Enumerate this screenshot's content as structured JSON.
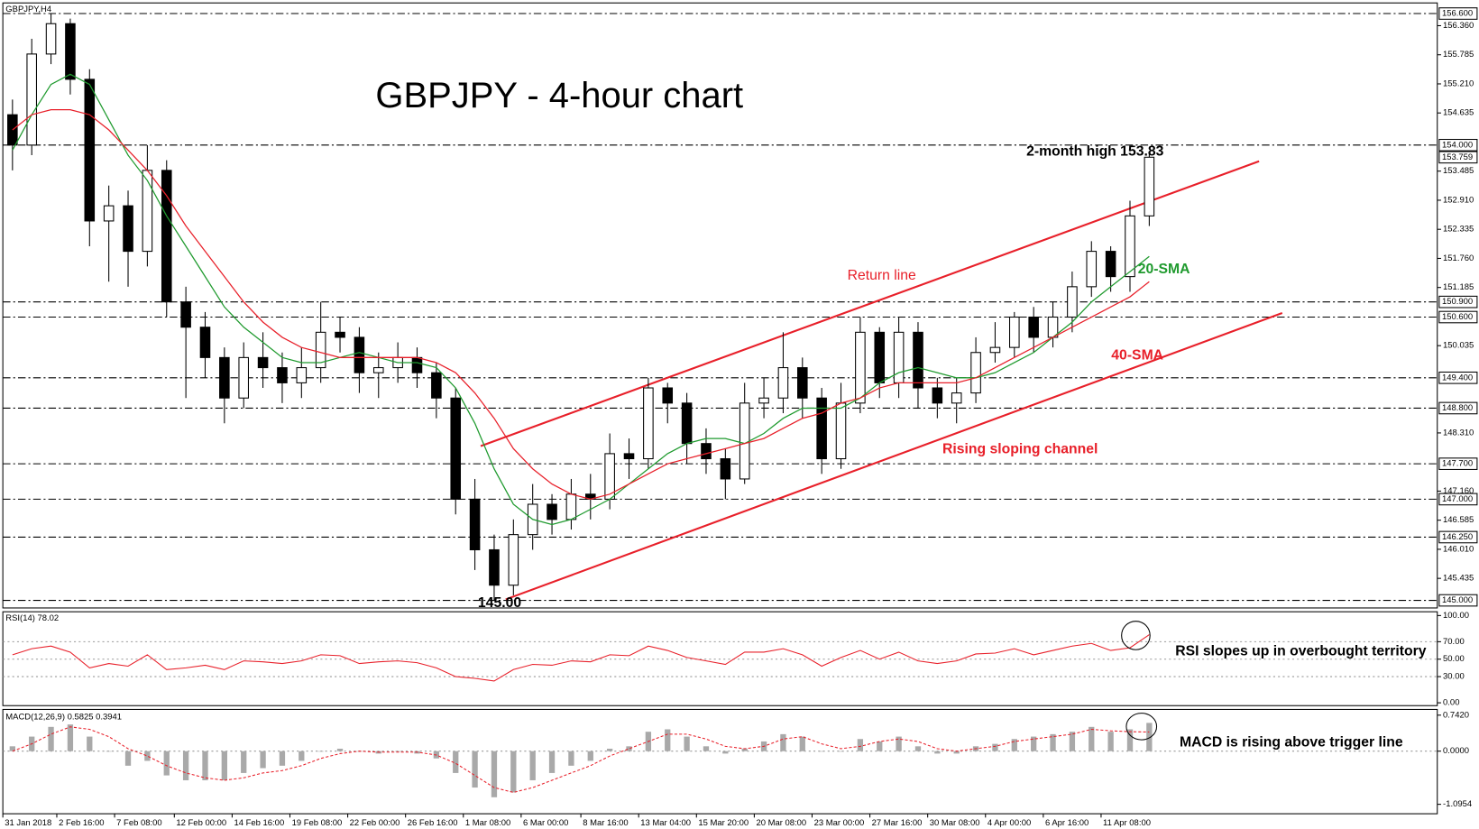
{
  "chart_data": [
    {
      "type": "candlestick",
      "title": "GBPJPY - 4-hour chart",
      "symbol_label": "GBPJPY,H4",
      "high_label": "2-month high 153.83",
      "low_label": "145.00",
      "open": [
        154.6,
        154.0,
        155.8,
        156.4,
        155.3,
        152.5,
        152.8,
        151.9,
        153.5,
        150.9,
        150.4,
        149.8,
        149.0,
        149.8,
        149.6,
        149.3,
        149.6,
        150.3,
        150.2,
        149.5,
        149.6,
        149.8,
        149.5,
        149.0,
        147.0,
        146.0,
        145.3,
        146.3,
        146.9,
        146.6,
        147.1,
        147.0,
        147.9,
        147.8,
        149.2,
        148.9,
        148.1,
        147.8,
        147.4,
        148.9,
        149.0,
        149.6,
        149.0,
        147.8,
        148.9,
        150.3,
        149.3,
        150.3,
        149.2,
        148.9,
        149.1,
        149.9,
        150.0,
        150.6,
        150.2,
        150.6,
        151.2,
        151.9,
        151.4,
        152.6
      ],
      "high": [
        154.9,
        156.1,
        156.6,
        156.5,
        155.5,
        153.2,
        153.1,
        154.0,
        153.7,
        151.2,
        150.7,
        150.0,
        150.1,
        150.3,
        149.9,
        150.0,
        150.9,
        150.6,
        150.4,
        149.9,
        150.1,
        150.0,
        149.7,
        149.2,
        147.4,
        146.3,
        146.6,
        147.3,
        147.1,
        147.4,
        147.5,
        148.3,
        148.2,
        149.4,
        149.3,
        149.1,
        148.4,
        148.0,
        149.3,
        149.4,
        150.3,
        149.8,
        149.2,
        149.3,
        150.6,
        150.4,
        150.6,
        150.5,
        149.4,
        149.4,
        150.2,
        150.5,
        150.7,
        150.8,
        150.9,
        151.5,
        152.1,
        152.0,
        152.9,
        153.83
      ],
      "low": [
        153.5,
        153.8,
        155.6,
        155.0,
        152.0,
        151.3,
        151.2,
        151.6,
        150.6,
        149.0,
        149.4,
        148.5,
        148.8,
        149.2,
        148.9,
        149.0,
        149.3,
        149.9,
        149.1,
        149.0,
        149.3,
        149.2,
        148.6,
        146.7,
        145.6,
        145.0,
        145.1,
        146.0,
        146.3,
        146.4,
        146.6,
        146.8,
        147.4,
        147.6,
        148.5,
        147.7,
        147.5,
        147.0,
        147.3,
        148.6,
        148.7,
        148.6,
        147.5,
        147.6,
        148.7,
        149.0,
        149.0,
        148.8,
        148.6,
        148.5,
        148.9,
        149.7,
        149.8,
        149.9,
        150.0,
        150.3,
        151.0,
        151.1,
        151.1,
        152.4
      ],
      "close": [
        154.0,
        155.8,
        156.4,
        155.3,
        152.5,
        152.8,
        151.9,
        153.5,
        150.9,
        150.4,
        149.8,
        149.0,
        149.8,
        149.6,
        149.3,
        149.6,
        150.3,
        150.2,
        149.5,
        149.6,
        149.8,
        149.5,
        149.0,
        147.0,
        146.0,
        145.3,
        146.3,
        146.9,
        146.6,
        147.1,
        147.0,
        147.9,
        147.8,
        149.2,
        148.9,
        148.1,
        147.8,
        147.4,
        148.9,
        149.0,
        149.6,
        149.0,
        147.8,
        148.9,
        150.3,
        149.3,
        150.3,
        149.2,
        148.9,
        149.1,
        149.9,
        150.0,
        150.6,
        150.2,
        150.6,
        151.2,
        151.9,
        151.4,
        152.6,
        153.76
      ],
      "series": [
        {
          "name": "20-SMA",
          "color": "#1f9a2e",
          "values": [
            153.9,
            154.6,
            155.2,
            155.4,
            155.2,
            154.5,
            153.8,
            153.3,
            152.6,
            152.0,
            151.4,
            150.8,
            150.4,
            150.1,
            149.8,
            149.7,
            149.7,
            149.8,
            149.9,
            149.8,
            149.7,
            149.7,
            149.6,
            149.2,
            148.5,
            147.6,
            146.9,
            146.6,
            146.5,
            146.6,
            146.8,
            147.0,
            147.3,
            147.6,
            147.9,
            148.1,
            148.2,
            148.2,
            148.1,
            148.3,
            148.6,
            148.8,
            148.8,
            148.8,
            149.0,
            149.3,
            149.5,
            149.6,
            149.5,
            149.4,
            149.4,
            149.5,
            149.7,
            149.9,
            150.2,
            150.5,
            150.9,
            151.2,
            151.5,
            151.8
          ]
        },
        {
          "name": "40-SMA",
          "color": "#e8202a",
          "values": [
            154.3,
            154.6,
            154.7,
            154.7,
            154.6,
            154.3,
            153.9,
            153.5,
            153.0,
            152.4,
            151.9,
            151.4,
            150.9,
            150.5,
            150.2,
            150.0,
            149.9,
            149.8,
            149.8,
            149.8,
            149.8,
            149.8,
            149.7,
            149.5,
            149.1,
            148.6,
            148.0,
            147.6,
            147.3,
            147.1,
            147.0,
            147.1,
            147.3,
            147.5,
            147.7,
            147.8,
            147.9,
            148.0,
            148.1,
            148.2,
            148.4,
            148.6,
            148.7,
            148.9,
            149.0,
            149.2,
            149.3,
            149.3,
            149.3,
            149.3,
            149.4,
            149.6,
            149.8,
            150.0,
            150.2,
            150.4,
            150.6,
            150.8,
            151.0,
            151.3
          ]
        }
      ],
      "channel": {
        "name": "Rising sloping channel",
        "color": "#e8202a",
        "lines": [
          {
            "name": "Return line",
            "x": [
              24.3,
              64.7
            ],
            "y": [
              148.05,
              153.68
            ]
          },
          {
            "x": [
              25.6,
              65.9
            ],
            "y": [
              145.02,
              150.68
            ]
          }
        ]
      },
      "levels": [
        {
          "value": 156.6,
          "label": "156.600"
        },
        {
          "value": 154,
          "label": "154.000"
        },
        {
          "value": 150.9,
          "label": "150.900"
        },
        {
          "value": 150.6,
          "label": "150.600"
        },
        {
          "value": 149.4,
          "label": "149.400"
        },
        {
          "value": 148.8,
          "label": "148.800"
        },
        {
          "value": 147.7,
          "label": "147.700"
        },
        {
          "value": 147,
          "label": "147.000"
        },
        {
          "value": 146.25,
          "label": "146.250"
        },
        {
          "value": 145,
          "label": "145.000"
        }
      ],
      "last_price": 153.759,
      "xlim": [
        -0.5,
        73.9
      ],
      "xticks": [
        {
          "value": -0.5,
          "label": "31 Jan 2018"
        },
        {
          "value": 2.3,
          "label": "2 Feb 16:00"
        },
        {
          "value": 5.3,
          "label": "7 Feb 08:00"
        },
        {
          "value": 8.4,
          "label": "12 Feb 00:00"
        },
        {
          "value": 11.4,
          "label": "14 Feb 16:00"
        },
        {
          "value": 14.4,
          "label": "19 Feb 08:00"
        },
        {
          "value": 17.4,
          "label": "22 Feb 00:00"
        },
        {
          "value": 20.4,
          "label": "26 Feb 16:00"
        },
        {
          "value": 23.4,
          "label": "1 Mar 08:00"
        },
        {
          "value": 26.4,
          "label": "6 Mar 00:00"
        },
        {
          "value": 29.5,
          "label": "8 Mar 16:00"
        },
        {
          "value": 32.5,
          "label": "13 Mar 04:00"
        },
        {
          "value": 35.5,
          "label": "15 Mar 20:00"
        },
        {
          "value": 38.5,
          "label": "20 Mar 08:00"
        },
        {
          "value": 41.5,
          "label": "23 Mar 00:00"
        },
        {
          "value": 44.5,
          "label": "27 Mar 16:00"
        },
        {
          "value": 47.5,
          "label": "30 Mar 08:00"
        },
        {
          "value": 50.5,
          "label": "4 Apr 00:00"
        },
        {
          "value": 53.5,
          "label": "6 Apr 16:00"
        },
        {
          "value": 56.5,
          "label": "11 Apr 08:00"
        }
      ],
      "ylim": [
        144.85,
        156.81
      ],
      "yticks": [
        {
          "value": 156.36,
          "label": "156.360"
        },
        155.785,
        {
          "value": 155.21,
          "label": "155.210"
        },
        154.635,
        153.485,
        {
          "value": 152.91,
          "label": "152.910"
        },
        152.335,
        {
          "value": 151.76,
          "label": "151.760"
        },
        151.185,
        150.035,
        {
          "value": 148.31,
          "label": "148.310"
        },
        {
          "value": 147.16,
          "label": "147.160"
        },
        146.585,
        {
          "value": 146.01,
          "label": "146.010"
        },
        145.435
      ]
    },
    {
      "type": "line",
      "label": "RSI(14) 78.02",
      "note": "RSI slopes up in overbought territory",
      "color": "#e8202a",
      "values": [
        55,
        62,
        65,
        58,
        40,
        45,
        42,
        55,
        38,
        40,
        43,
        38,
        48,
        47,
        45,
        48,
        55,
        54,
        45,
        47,
        48,
        46,
        40,
        30,
        28,
        25,
        38,
        44,
        43,
        48,
        47,
        55,
        54,
        65,
        60,
        52,
        48,
        44,
        58,
        58,
        62,
        55,
        42,
        52,
        60,
        50,
        58,
        48,
        45,
        48,
        56,
        57,
        62,
        55,
        60,
        65,
        68,
        60,
        63,
        78.02
      ],
      "ylim": [
        0,
        100
      ],
      "yticks": [
        {
          "value": 100,
          "label": "100.00"
        },
        {
          "value": 70,
          "label": "70.00"
        },
        {
          "value": 50,
          "label": "50.00"
        },
        {
          "value": 30,
          "label": "30.00"
        },
        {
          "value": 0,
          "label": "0.00"
        }
      ]
    },
    {
      "type": "macd",
      "label": "MACD(12,26,9) 0.5825 0.3941",
      "note": "MACD is rising above trigger line",
      "color": "#a9a9a9",
      "values": [
        0.1,
        0.3,
        0.5,
        0.55,
        0.3,
        0.0,
        -0.3,
        -0.2,
        -0.5,
        -0.6,
        -0.6,
        -0.6,
        -0.45,
        -0.35,
        -0.3,
        -0.2,
        0.0,
        0.05,
        0.0,
        -0.05,
        0.0,
        -0.05,
        -0.15,
        -0.45,
        -0.75,
        -0.95,
        -0.85,
        -0.6,
        -0.45,
        -0.3,
        -0.2,
        0.05,
        0.1,
        0.4,
        0.45,
        0.3,
        0.1,
        -0.05,
        0.05,
        0.2,
        0.35,
        0.3,
        0.0,
        0.0,
        0.25,
        0.2,
        0.3,
        0.1,
        -0.05,
        -0.05,
        0.1,
        0.15,
        0.25,
        0.3,
        0.35,
        0.4,
        0.5,
        0.4,
        0.45,
        0.5825
      ],
      "signal": {
        "color": "#e8202a",
        "values": [
          0.0,
          0.15,
          0.35,
          0.5,
          0.45,
          0.3,
          0.05,
          -0.1,
          -0.3,
          -0.45,
          -0.55,
          -0.6,
          -0.55,
          -0.45,
          -0.4,
          -0.3,
          -0.15,
          -0.05,
          0.0,
          -0.02,
          -0.02,
          -0.02,
          -0.08,
          -0.25,
          -0.5,
          -0.75,
          -0.85,
          -0.75,
          -0.6,
          -0.45,
          -0.3,
          -0.1,
          0.05,
          0.2,
          0.35,
          0.35,
          0.25,
          0.1,
          0.05,
          0.1,
          0.25,
          0.3,
          0.15,
          0.05,
          0.1,
          0.2,
          0.25,
          0.2,
          0.05,
          0.0,
          0.05,
          0.1,
          0.2,
          0.25,
          0.3,
          0.35,
          0.45,
          0.42,
          0.4,
          0.3941
        ]
      },
      "ylim": [
        -1.29,
        0.86
      ],
      "yticks": [
        {
          "value": 0.742,
          "label": "0.7420"
        },
        {
          "value": 0,
          "label": "0.0000"
        },
        {
          "value": -1.0954,
          "label": "-1.0954"
        }
      ]
    }
  ]
}
